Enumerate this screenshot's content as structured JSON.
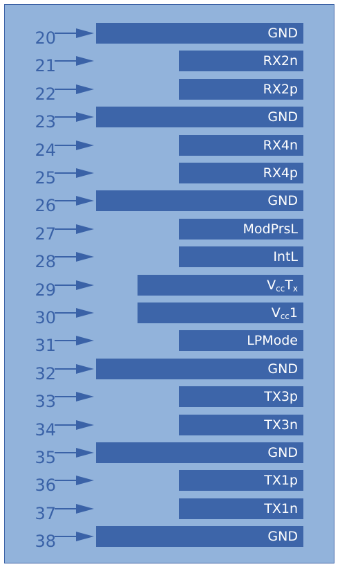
{
  "pins": [
    {
      "number": "20",
      "label_parts": [
        {
          "text": "GND"
        }
      ]
    },
    {
      "number": "21",
      "label_parts": [
        {
          "text": "RX2n"
        }
      ]
    },
    {
      "number": "22",
      "label_parts": [
        {
          "text": "RX2p"
        }
      ]
    },
    {
      "number": "23",
      "label_parts": [
        {
          "text": "GND"
        }
      ]
    },
    {
      "number": "24",
      "label_parts": [
        {
          "text": "RX4n"
        }
      ]
    },
    {
      "number": "25",
      "label_parts": [
        {
          "text": "RX4p"
        }
      ]
    },
    {
      "number": "26",
      "label_parts": [
        {
          "text": "GND"
        }
      ]
    },
    {
      "number": "27",
      "label_parts": [
        {
          "text": "ModPrsL"
        }
      ]
    },
    {
      "number": "28",
      "label_parts": [
        {
          "text": "IntL"
        }
      ]
    },
    {
      "number": "29",
      "label_parts": [
        {
          "text": "V"
        },
        {
          "text": "cc",
          "sub": true
        },
        {
          "text": "T"
        },
        {
          "text": "x",
          "sub": true
        }
      ]
    },
    {
      "number": "30",
      "label_parts": [
        {
          "text": "V"
        },
        {
          "text": "cc",
          "sub": true
        },
        {
          "text": "1"
        }
      ]
    },
    {
      "number": "31",
      "label_parts": [
        {
          "text": "LPMode"
        }
      ]
    },
    {
      "number": "32",
      "label_parts": [
        {
          "text": "GND"
        }
      ]
    },
    {
      "number": "33",
      "label_parts": [
        {
          "text": "TX3p"
        }
      ]
    },
    {
      "number": "34",
      "label_parts": [
        {
          "text": "TX3n"
        }
      ]
    },
    {
      "number": "35",
      "label_parts": [
        {
          "text": "GND"
        }
      ]
    },
    {
      "number": "36",
      "label_parts": [
        {
          "text": "TX1p"
        }
      ]
    },
    {
      "number": "37",
      "label_parts": [
        {
          "text": "TX1n"
        }
      ]
    },
    {
      "number": "38",
      "label_parts": [
        {
          "text": "GND"
        }
      ]
    }
  ]
}
